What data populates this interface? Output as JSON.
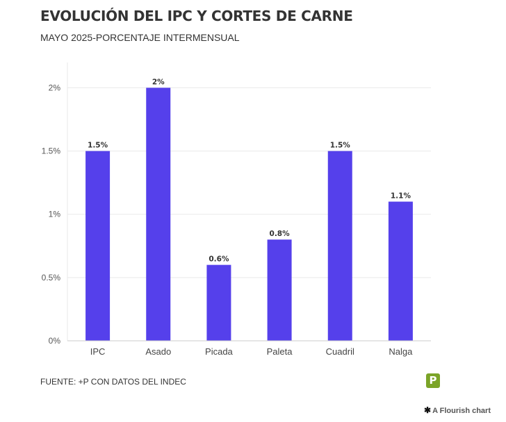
{
  "header": {
    "title": "EVOLUCIÓN DEL IPC Y CORTES DE CARNE",
    "subtitle": "MAYO 2025-PORCENTAJE INTERMENSUAL"
  },
  "footer": {
    "source": "FUENTE: +P CON DATOS DEL INDEC",
    "logo_letter": "P",
    "credit_star": "✱",
    "credit": "A Flourish chart"
  },
  "colors": {
    "bar": "#5540eb",
    "grid": "#e9e9e9",
    "axis": "#cccccc",
    "logo": "#7ba428"
  },
  "icons": {
    "brand_logo": "green-p-logo-icon",
    "flourish": "asterisk-icon"
  },
  "chart_data": {
    "type": "bar",
    "categories": [
      "IPC",
      "Asado",
      "Picada",
      "Paleta",
      "Cuadril",
      "Nalga"
    ],
    "values": [
      1.5,
      2,
      0.6,
      0.8,
      1.5,
      1.1
    ],
    "data_labels": [
      "1.5%",
      "2%",
      "0.6%",
      "0.8%",
      "1.5%",
      "1.1%"
    ],
    "y_ticks": [
      0,
      0.5,
      1,
      1.5,
      2
    ],
    "y_tick_labels": [
      "0%",
      "0.5%",
      "1%",
      "1.5%",
      "2%"
    ],
    "ylim": [
      0,
      2.2
    ],
    "grid": true,
    "legend": "none",
    "title": "EVOLUCIÓN DEL IPC Y CORTES DE CARNE",
    "subtitle": "MAYO 2025-PORCENTAJE INTERMENSUAL",
    "xlabel": "",
    "ylabel": ""
  }
}
